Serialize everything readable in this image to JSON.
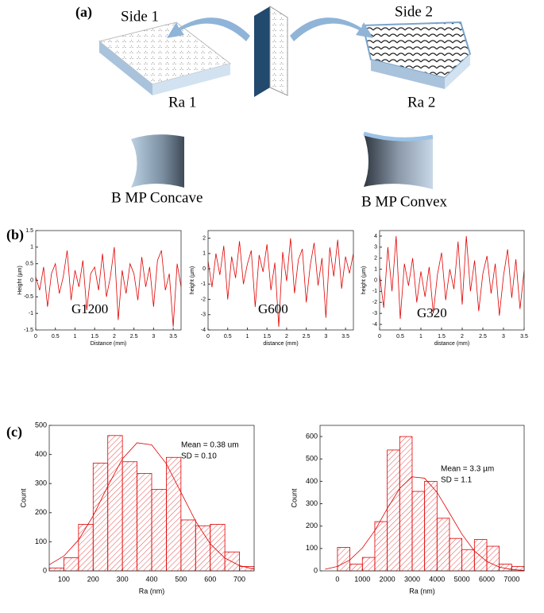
{
  "labels": {
    "a": "(a)",
    "b": "(b)",
    "c": "(c)"
  },
  "diagram": {
    "side1": "Side 1",
    "side2": "Side 2",
    "ra1": "Ra 1",
    "ra2": "Ra 2",
    "concave": "B MP Concave",
    "convex": "B MP Convex"
  },
  "chart_data": [
    {
      "type": "line",
      "xlabel": "Distance (mm)",
      "ylabel": "Height (µm)",
      "color": "#e00000",
      "annotations": [
        "G1200"
      ],
      "x": [
        0,
        0.1,
        0.2,
        0.3,
        0.4,
        0.5,
        0.6,
        0.7,
        0.8,
        0.9,
        1,
        1.1,
        1.2,
        1.3,
        1.4,
        1.5,
        1.6,
        1.7,
        1.8,
        1.9,
        2,
        2.1,
        2.2,
        2.3,
        2.4,
        2.5,
        2.6,
        2.7,
        2.8,
        2.9,
        3,
        3.1,
        3.2,
        3.3,
        3.4,
        3.5,
        3.6,
        3.7
      ],
      "values": [
        0.1,
        -0.3,
        0.4,
        -0.8,
        0.2,
        0.5,
        -0.4,
        0.1,
        0.9,
        -0.6,
        0.3,
        -0.2,
        0.6,
        -0.9,
        0.2,
        0.4,
        -0.3,
        0.8,
        -0.5,
        0.1,
        1.0,
        -1.2,
        0.3,
        -0.4,
        0.5,
        0.2,
        -0.6,
        0.7,
        -0.2,
        0.4,
        -0.8,
        0.6,
        0.9,
        -0.3,
        0.2,
        -1.4,
        0.5,
        -0.2
      ],
      "xlim": [
        0,
        3.7
      ],
      "ylim": [
        -1.5,
        1.5
      ],
      "xticks": [
        0,
        0.5,
        1,
        1.5,
        2,
        2.5,
        3,
        3.5
      ],
      "yticks": [
        -1.5,
        -1,
        -0.5,
        0,
        0.5,
        1,
        1.5
      ]
    },
    {
      "type": "line",
      "xlabel": "distance (mm)",
      "ylabel": "height (µm)",
      "color": "#e00000",
      "annotations": [
        "G600"
      ],
      "x": [
        0,
        0.1,
        0.2,
        0.3,
        0.4,
        0.5,
        0.6,
        0.7,
        0.8,
        0.9,
        1,
        1.1,
        1.2,
        1.3,
        1.4,
        1.5,
        1.6,
        1.7,
        1.8,
        1.9,
        2,
        2.1,
        2.2,
        2.3,
        2.4,
        2.5,
        2.6,
        2.7,
        2.8,
        2.9,
        3,
        3.1,
        3.2,
        3.3,
        3.4,
        3.5,
        3.6,
        3.7
      ],
      "values": [
        0.5,
        -1.2,
        1.0,
        -0.4,
        1.5,
        -2.0,
        0.8,
        -0.6,
        1.8,
        -1.0,
        0.3,
        1.2,
        -2.5,
        0.9,
        -0.2,
        1.6,
        -1.4,
        0.4,
        -3.8,
        1.1,
        -0.8,
        2.0,
        -1.6,
        0.6,
        1.3,
        -2.2,
        0.2,
        1.7,
        -1.1,
        0.7,
        -3.2,
        1.4,
        -0.5,
        1.9,
        -1.3,
        0.8,
        -0.3,
        1.0
      ],
      "xlim": [
        0,
        3.7
      ],
      "ylim": [
        -4,
        2.5
      ],
      "xticks": [
        0,
        0.5,
        1,
        1.5,
        2,
        2.5,
        3,
        3.5
      ],
      "yticks": [
        -4,
        -3,
        -2,
        -1,
        0,
        1,
        2
      ]
    },
    {
      "type": "line",
      "xlabel": "distance (mm)",
      "ylabel": "height (µm)",
      "color": "#e00000",
      "annotations": [
        "G320"
      ],
      "x": [
        0,
        0.1,
        0.2,
        0.3,
        0.4,
        0.5,
        0.6,
        0.7,
        0.8,
        0.9,
        1,
        1.1,
        1.2,
        1.3,
        1.4,
        1.5,
        1.6,
        1.7,
        1.8,
        1.9,
        2,
        2.1,
        2.2,
        2.3,
        2.4,
        2.5,
        2.6,
        2.7,
        2.8,
        2.9,
        3,
        3.1,
        3.2,
        3.3,
        3.4,
        3.5
      ],
      "values": [
        0.5,
        -2.5,
        3.0,
        -1.0,
        4.0,
        -3.5,
        1.5,
        -0.5,
        2.0,
        -2.0,
        0.8,
        -1.5,
        1.2,
        -3.0,
        0.5,
        2.5,
        -1.8,
        1.0,
        -0.8,
        3.5,
        -2.2,
        4.0,
        -1.0,
        1.8,
        -2.8,
        0.6,
        2.2,
        -1.2,
        1.5,
        -3.2,
        0.4,
        2.8,
        -1.6,
        1.9,
        -2.6,
        0.9
      ],
      "xlim": [
        0,
        3.5
      ],
      "ylim": [
        -4.5,
        4.5
      ],
      "xticks": [
        0,
        0.5,
        1,
        1.5,
        2,
        2.5,
        3,
        3.5
      ],
      "yticks": [
        -4,
        -3,
        -2,
        -1,
        0,
        1,
        2,
        3,
        4
      ]
    },
    {
      "type": "histogram",
      "xlabel": "Ra (nm)",
      "ylabel": "Count",
      "color": "#e00000",
      "annotations": [
        "Mean = 0.38 um",
        "SD = 0.10"
      ],
      "bins": [
        50,
        100,
        150,
        200,
        250,
        300,
        350,
        400,
        450,
        500,
        550,
        600,
        650,
        700,
        750
      ],
      "values": [
        10,
        45,
        160,
        370,
        465,
        375,
        335,
        280,
        390,
        175,
        155,
        160,
        65,
        15
      ],
      "curve": {
        "x": [
          50,
          100,
          150,
          200,
          250,
          300,
          350,
          400,
          450,
          500,
          550,
          600,
          650,
          700,
          750
        ],
        "values": [
          21,
          51,
          106,
          189,
          291,
          385,
          440,
          433,
          368,
          270,
          171,
          93,
          44,
          18,
          6
        ]
      },
      "xlim": [
        50,
        750
      ],
      "ylim": [
        0,
        500
      ],
      "xticks": [
        100,
        200,
        300,
        400,
        500,
        600,
        700
      ],
      "yticks": [
        0,
        100,
        200,
        300,
        400,
        500
      ]
    },
    {
      "type": "histogram",
      "xlabel": "Ra (nm)",
      "ylabel": "Count",
      "color": "#e00000",
      "annotations": [
        "Mean = 3.3 µm",
        "SD    = 1.1"
      ],
      "bins": [
        0,
        500,
        1000,
        1500,
        2000,
        2500,
        3000,
        3500,
        4000,
        4500,
        5000,
        5500,
        6000,
        6500,
        7000,
        7500
      ],
      "values": [
        105,
        30,
        60,
        220,
        540,
        600,
        355,
        400,
        235,
        145,
        95,
        140,
        110,
        30,
        20
      ],
      "curve": {
        "x": [
          -500,
          0,
          500,
          1000,
          1500,
          2000,
          2500,
          3000,
          3500,
          4000,
          4500,
          5000,
          5500,
          6000,
          6500,
          7000,
          7500
        ],
        "values": [
          7,
          20,
          49,
          102,
          180,
          278,
          368,
          420,
          414,
          351,
          258,
          164,
          89,
          42,
          17,
          6,
          2
        ]
      },
      "xlim": [
        -700,
        7500
      ],
      "ylim": [
        0,
        650
      ],
      "xticks": [
        0,
        1000,
        2000,
        3000,
        4000,
        5000,
        6000,
        7000
      ],
      "yticks": [
        0,
        100,
        200,
        300,
        400,
        500,
        600
      ]
    }
  ]
}
